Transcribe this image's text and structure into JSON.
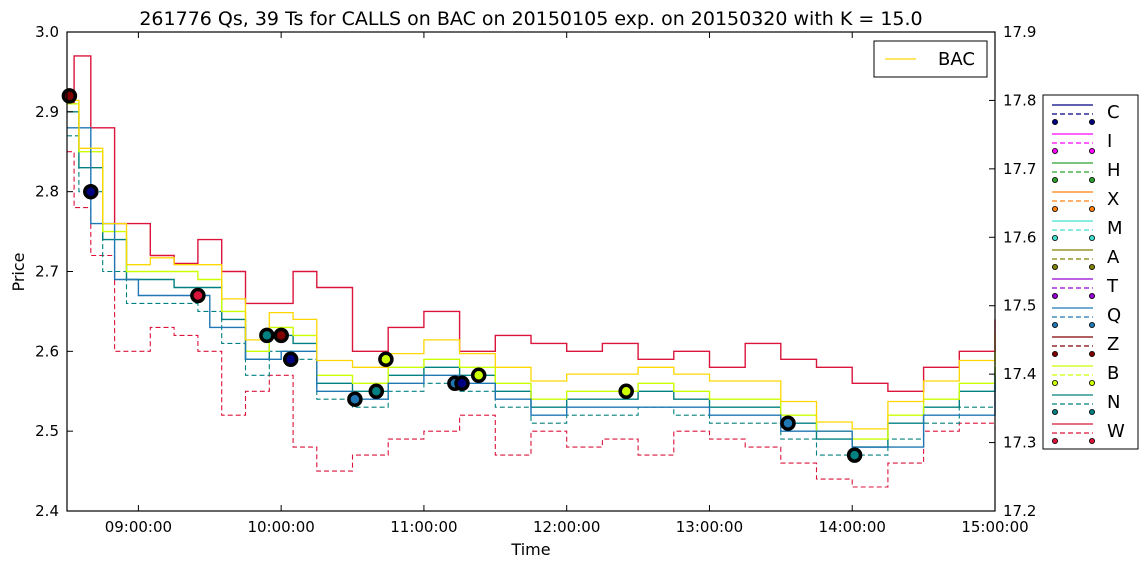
{
  "chart_data": {
    "type": "line",
    "title": "261776 Qs, 39 Ts for CALLS on BAC on 20150105 exp. on 20150320 with K = 15.0",
    "xlabel": "Time",
    "ylabel": "Price",
    "x_ticks": [
      "09:00:00",
      "10:00:00",
      "11:00:00",
      "12:00:00",
      "13:00:00",
      "14:00:00",
      "15:00:00"
    ],
    "x_range": [
      "08:30:00",
      "15:00:00"
    ],
    "ylim": [
      2.4,
      3.0
    ],
    "y_ticks": [
      "2.4",
      "2.5",
      "2.6",
      "2.7",
      "2.8",
      "2.9",
      "3.0"
    ],
    "y2lim": [
      17.2,
      17.9
    ],
    "y2_ticks": [
      "17.2",
      "17.3",
      "17.4",
      "17.5",
      "17.6",
      "17.7",
      "17.8",
      "17.9"
    ],
    "grid": false,
    "legend_underlying": {
      "label": "BAC",
      "color": "#ffd700",
      "placement": "top-right"
    },
    "legend_exchanges": {
      "placement": "outside-right",
      "items": [
        {
          "label": "C",
          "color": "#000080"
        },
        {
          "label": "I",
          "color": "#ff00ff"
        },
        {
          "label": "H",
          "color": "#2ca02c"
        },
        {
          "label": "X",
          "color": "#ff7f0e"
        },
        {
          "label": "M",
          "color": "#40e0d0"
        },
        {
          "label": "A",
          "color": "#808000"
        },
        {
          "label": "T",
          "color": "#9400d3"
        },
        {
          "label": "Q",
          "color": "#1f77b4"
        },
        {
          "label": "Z",
          "color": "#800000"
        },
        {
          "label": "B",
          "color": "#ccff00"
        },
        {
          "label": "N",
          "color": "#008080"
        },
        {
          "label": "W",
          "color": "#dc143c"
        }
      ]
    },
    "series": [
      {
        "name": "W",
        "role": "ask",
        "color": "#dc143c",
        "x": [
          "08:30",
          "08:33",
          "08:40",
          "08:50",
          "09:05",
          "09:15",
          "09:25",
          "09:35",
          "09:45",
          "09:55",
          "10:05",
          "10:15",
          "10:30",
          "10:45",
          "11:00",
          "11:15",
          "11:30",
          "11:45",
          "12:00",
          "12:15",
          "12:30",
          "12:45",
          "13:00",
          "13:15",
          "13:30",
          "13:45",
          "14:00",
          "14:15",
          "14:30",
          "14:45",
          "15:00"
        ],
        "y": [
          2.91,
          2.97,
          2.88,
          2.76,
          2.72,
          2.71,
          2.74,
          2.7,
          2.66,
          2.66,
          2.7,
          2.68,
          2.6,
          2.63,
          2.65,
          2.6,
          2.62,
          2.61,
          2.6,
          2.61,
          2.59,
          2.6,
          2.58,
          2.61,
          2.59,
          2.58,
          2.56,
          2.55,
          2.58,
          2.6,
          2.64
        ]
      },
      {
        "name": "W",
        "role": "bid",
        "color": "#dc143c",
        "x": [
          "08:30",
          "08:33",
          "08:40",
          "08:50",
          "09:05",
          "09:15",
          "09:25",
          "09:35",
          "09:45",
          "09:55",
          "10:05",
          "10:15",
          "10:30",
          "10:45",
          "11:00",
          "11:15",
          "11:30",
          "11:45",
          "12:00",
          "12:15",
          "12:30",
          "12:45",
          "13:00",
          "13:15",
          "13:30",
          "13:45",
          "14:00",
          "14:15",
          "14:30",
          "14:45",
          "15:00"
        ],
        "y": [
          2.85,
          2.78,
          2.72,
          2.6,
          2.63,
          2.62,
          2.6,
          2.52,
          2.55,
          2.57,
          2.48,
          2.45,
          2.47,
          2.49,
          2.5,
          2.52,
          2.47,
          2.5,
          2.48,
          2.49,
          2.47,
          2.5,
          2.49,
          2.48,
          2.46,
          2.44,
          2.43,
          2.46,
          2.5,
          2.51,
          2.5
        ]
      },
      {
        "name": "N",
        "role": "ask",
        "color": "#008080",
        "x": [
          "08:30",
          "08:35",
          "08:45",
          "08:55",
          "09:05",
          "09:15",
          "09:25",
          "09:35",
          "09:45",
          "09:55",
          "10:05",
          "10:15",
          "10:30",
          "10:45",
          "11:00",
          "11:15",
          "11:30",
          "11:45",
          "12:00",
          "12:15",
          "12:30",
          "12:45",
          "13:00",
          "13:15",
          "13:30",
          "13:45",
          "14:00",
          "14:15",
          "14:30",
          "14:45",
          "15:00"
        ],
        "y": [
          2.9,
          2.83,
          2.74,
          2.69,
          2.69,
          2.68,
          2.68,
          2.64,
          2.59,
          2.62,
          2.61,
          2.56,
          2.55,
          2.57,
          2.58,
          2.57,
          2.55,
          2.53,
          2.54,
          2.54,
          2.55,
          2.54,
          2.53,
          2.53,
          2.51,
          2.49,
          2.48,
          2.51,
          2.53,
          2.55,
          2.58
        ]
      },
      {
        "name": "N",
        "role": "bid",
        "color": "#008080",
        "x": [
          "08:30",
          "08:35",
          "08:45",
          "08:55",
          "09:05",
          "09:15",
          "09:25",
          "09:35",
          "09:45",
          "09:55",
          "10:05",
          "10:15",
          "10:30",
          "10:45",
          "11:00",
          "11:15",
          "11:30",
          "11:45",
          "12:00",
          "12:15",
          "12:30",
          "12:45",
          "13:00",
          "13:15",
          "13:30",
          "13:45",
          "14:00",
          "14:15",
          "14:30",
          "14:45",
          "15:00"
        ],
        "y": [
          2.87,
          2.8,
          2.7,
          2.66,
          2.66,
          2.66,
          2.65,
          2.61,
          2.57,
          2.6,
          2.59,
          2.54,
          2.53,
          2.55,
          2.56,
          2.55,
          2.53,
          2.51,
          2.52,
          2.52,
          2.53,
          2.52,
          2.51,
          2.51,
          2.49,
          2.47,
          2.47,
          2.49,
          2.51,
          2.53,
          2.56
        ]
      },
      {
        "name": "B",
        "role": "ask",
        "color": "#ccff00",
        "x": [
          "08:30",
          "08:35",
          "08:45",
          "08:55",
          "09:05",
          "09:15",
          "09:25",
          "09:35",
          "09:45",
          "09:55",
          "10:05",
          "10:15",
          "10:30",
          "10:45",
          "11:00",
          "11:15",
          "11:30",
          "11:45",
          "12:00",
          "12:15",
          "12:30",
          "12:45",
          "13:00",
          "13:15",
          "13:30",
          "13:45",
          "14:00",
          "14:15",
          "14:30",
          "14:45",
          "15:00"
        ],
        "y": [
          2.91,
          2.85,
          2.75,
          2.7,
          2.7,
          2.7,
          2.69,
          2.65,
          2.6,
          2.63,
          2.62,
          2.57,
          2.56,
          2.58,
          2.59,
          2.58,
          2.56,
          2.54,
          2.55,
          2.55,
          2.56,
          2.55,
          2.54,
          2.54,
          2.52,
          2.5,
          2.49,
          2.52,
          2.54,
          2.56,
          2.6
        ]
      },
      {
        "name": "Q",
        "role": "ask",
        "color": "#1f77b4",
        "x": [
          "08:30",
          "08:40",
          "08:50",
          "09:00",
          "09:15",
          "09:30",
          "09:45",
          "10:00",
          "10:15",
          "10:30",
          "10:45",
          "11:00",
          "11:15",
          "11:30",
          "11:45",
          "12:00",
          "12:30",
          "13:00",
          "13:30",
          "14:00",
          "14:30",
          "15:00"
        ],
        "y": [
          2.88,
          2.76,
          2.69,
          2.67,
          2.67,
          2.63,
          2.59,
          2.6,
          2.55,
          2.54,
          2.56,
          2.57,
          2.56,
          2.54,
          2.52,
          2.53,
          2.53,
          2.52,
          2.5,
          2.48,
          2.52,
          2.57
        ]
      }
    ],
    "underlying": {
      "name": "BAC",
      "axis": "right",
      "color": "#ffd700",
      "x": [
        "08:30",
        "08:35",
        "08:45",
        "08:55",
        "09:05",
        "09:15",
        "09:25",
        "09:35",
        "09:45",
        "09:55",
        "10:05",
        "10:15",
        "10:30",
        "10:45",
        "11:00",
        "11:15",
        "11:30",
        "11:45",
        "12:00",
        "12:15",
        "12:30",
        "12:45",
        "13:00",
        "13:15",
        "13:30",
        "13:45",
        "14:00",
        "14:15",
        "14:30",
        "14:45",
        "15:00"
      ],
      "y": [
        17.8,
        17.73,
        17.62,
        17.56,
        17.57,
        17.56,
        17.56,
        17.51,
        17.45,
        17.49,
        17.48,
        17.42,
        17.41,
        17.43,
        17.45,
        17.43,
        17.41,
        17.39,
        17.4,
        17.4,
        17.41,
        17.4,
        17.39,
        17.39,
        17.36,
        17.33,
        17.32,
        17.36,
        17.39,
        17.42,
        17.46
      ]
    },
    "trades": [
      {
        "time": "08:31",
        "price": 2.92,
        "color": "#800000"
      },
      {
        "time": "08:40",
        "price": 2.8,
        "color": "#000080"
      },
      {
        "time": "09:25",
        "price": 2.67,
        "color": "#dc143c"
      },
      {
        "time": "09:54",
        "price": 2.62,
        "color": "#008080"
      },
      {
        "time": "10:00",
        "price": 2.62,
        "color": "#800000"
      },
      {
        "time": "10:04",
        "price": 2.59,
        "color": "#000080"
      },
      {
        "time": "10:31",
        "price": 2.54,
        "color": "#1f77b4"
      },
      {
        "time": "10:40",
        "price": 2.55,
        "color": "#008080"
      },
      {
        "time": "10:44",
        "price": 2.59,
        "color": "#ccff00"
      },
      {
        "time": "11:13",
        "price": 2.56,
        "color": "#1f77b4"
      },
      {
        "time": "11:16",
        "price": 2.56,
        "color": "#000080"
      },
      {
        "time": "11:23",
        "price": 2.57,
        "color": "#ccff00"
      },
      {
        "time": "12:25",
        "price": 2.55,
        "color": "#ccff00"
      },
      {
        "time": "13:33",
        "price": 2.51,
        "color": "#1f77b4"
      },
      {
        "time": "14:01",
        "price": 2.47,
        "color": "#008080"
      }
    ]
  }
}
